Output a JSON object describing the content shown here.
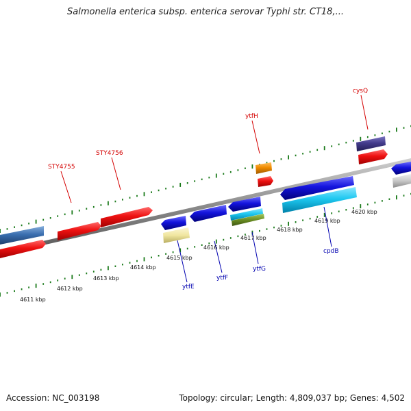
{
  "title": "Salmonella enterica subsp. enterica serovar Typhi str. CT18,...",
  "footer": {
    "accession": "Accession: NC_003198",
    "topology": "Topology: circular; Length: 4,809,037 bp; Genes: 4,502"
  },
  "kbp_labels": [
    "4611 kbp",
    "4612 kbp",
    "4613 kbp",
    "4614 kbp",
    "4615 kbp",
    "4616 kbp",
    "4617 kbp",
    "4618 kbp",
    "4619 kbp",
    "4620 kbp"
  ],
  "gene_labels": [
    {
      "text": "STY4755",
      "color": "#d40000"
    },
    {
      "text": "STY4756",
      "color": "#d40000"
    },
    {
      "text": "ytfH",
      "color": "#d40000"
    },
    {
      "text": "cysQ",
      "color": "#d40000"
    },
    {
      "text": "ytfE",
      "color": "#0000b0"
    },
    {
      "text": "ytfF",
      "color": "#0000b0"
    },
    {
      "text": "ytfG",
      "color": "#0000b0"
    },
    {
      "text": "cpdB",
      "color": "#0000b0"
    }
  ],
  "colors": {
    "forward_gene": "#ee1111",
    "reverse_gene": "#1414dd",
    "tick": "#1a7a1a",
    "backbone": "#888888",
    "steelblue_gene": "#3b6fb0",
    "purple_gene": "#433c8c",
    "orange_gene": "#f08c00",
    "cyan_gene": "#1ec8f0",
    "khaki_gene": "#f0e6a0",
    "olive_gene": "#6b8e23",
    "gray_gene": "#c8c8c8"
  }
}
